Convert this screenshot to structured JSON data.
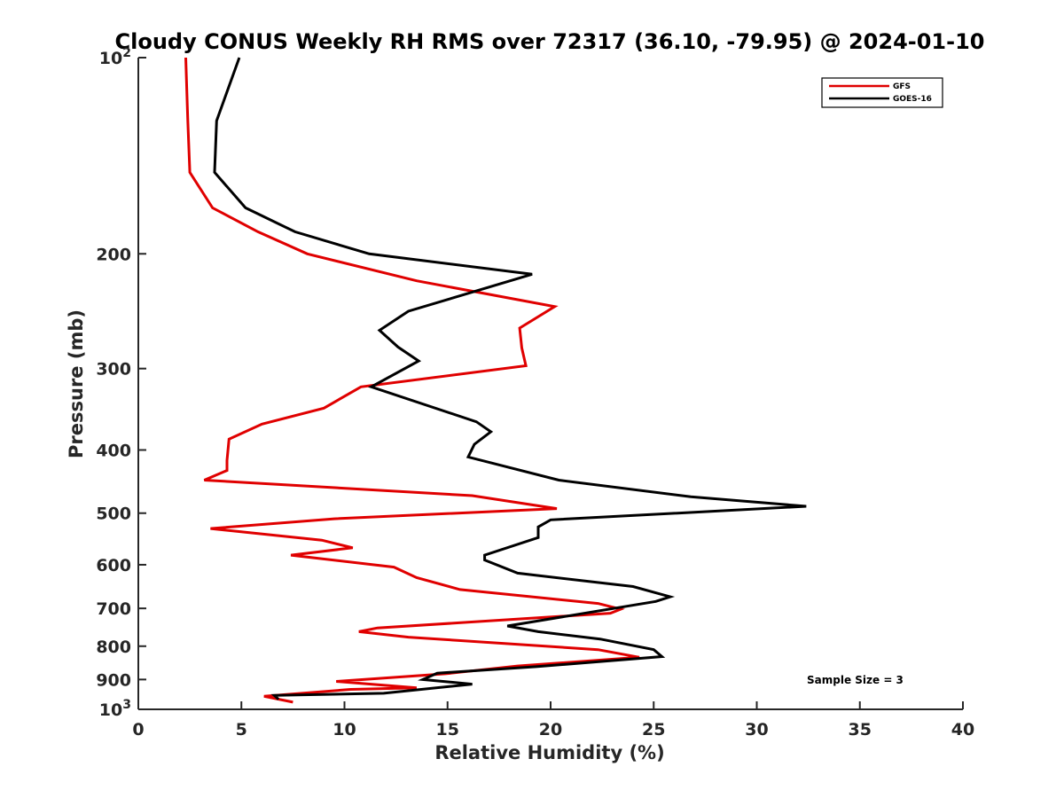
{
  "chart_data": {
    "type": "line",
    "title": "Cloudy CONUS Weekly RH RMS over 72317 (36.10, -79.95) @ 2024-01-10",
    "xlabel": "Relative Humidity (%)",
    "ylabel": "Pressure (mb)",
    "xlim": [
      0,
      40
    ],
    "ylim": [
      100,
      1000
    ],
    "y_scale": "log",
    "y_reversed": true,
    "grid": false,
    "legend_position": "top-right",
    "annotation": "Sample Size = 3",
    "x_ticks": [
      "0",
      "5",
      "10",
      "15",
      "20",
      "25",
      "30",
      "35",
      "40"
    ],
    "y_ticks": [
      {
        "value": 100,
        "base": "10",
        "exp": "2"
      },
      {
        "value": 200,
        "label": "200"
      },
      {
        "value": 300,
        "label": "300"
      },
      {
        "value": 400,
        "label": "400"
      },
      {
        "value": 500,
        "label": "500"
      },
      {
        "value": 600,
        "label": "600"
      },
      {
        "value": 700,
        "label": "700"
      },
      {
        "value": 800,
        "label": "800"
      },
      {
        "value": 900,
        "label": "900"
      },
      {
        "value": 1000,
        "base": "10",
        "exp": "3"
      }
    ],
    "series": [
      {
        "name": "GFS",
        "color": "#e00000",
        "points": [
          [
            2.3,
            100
          ],
          [
            2.4,
            125
          ],
          [
            2.5,
            150
          ],
          [
            3.6,
            170
          ],
          [
            5.8,
            185
          ],
          [
            8.2,
            200
          ],
          [
            13.5,
            220
          ],
          [
            20.2,
            241
          ],
          [
            18.5,
            260
          ],
          [
            18.6,
            279
          ],
          [
            18.8,
            297
          ],
          [
            10.8,
            320
          ],
          [
            9.0,
            345
          ],
          [
            6.0,
            365
          ],
          [
            4.4,
            385
          ],
          [
            4.3,
            415
          ],
          [
            4.3,
            430
          ],
          [
            3.2,
            445
          ],
          [
            16.2,
            470
          ],
          [
            20.3,
            492
          ],
          [
            9.5,
            510
          ],
          [
            3.5,
            528
          ],
          [
            8.9,
            550
          ],
          [
            10.4,
            565
          ],
          [
            7.4,
            580
          ],
          [
            12.4,
            605
          ],
          [
            13.5,
            628
          ],
          [
            15.6,
            655
          ],
          [
            22.3,
            688
          ],
          [
            23.4,
            702
          ],
          [
            22.9,
            712
          ],
          [
            11.6,
            750
          ],
          [
            10.7,
            760
          ],
          [
            13.1,
            775
          ],
          [
            22.3,
            810
          ],
          [
            24.3,
            832
          ],
          [
            18.4,
            858
          ],
          [
            14.9,
            882
          ],
          [
            9.6,
            906
          ],
          [
            13.5,
            927
          ],
          [
            10.3,
            932
          ],
          [
            6.1,
            955
          ],
          [
            7.5,
            975
          ]
        ]
      },
      {
        "name": "GOES-16",
        "color": "#000000",
        "points": [
          [
            4.9,
            100
          ],
          [
            3.8,
            125
          ],
          [
            3.7,
            150
          ],
          [
            5.2,
            170
          ],
          [
            7.6,
            185
          ],
          [
            11.2,
            200
          ],
          [
            19.1,
            215
          ],
          [
            13.1,
            245
          ],
          [
            11.7,
            262
          ],
          [
            12.6,
            278
          ],
          [
            13.6,
            292
          ],
          [
            11.3,
            320
          ],
          [
            16.4,
            362
          ],
          [
            17.1,
            375
          ],
          [
            16.3,
            392
          ],
          [
            16.0,
            410
          ],
          [
            20.4,
            445
          ],
          [
            26.8,
            472
          ],
          [
            32.4,
            488
          ],
          [
            20.0,
            512
          ],
          [
            19.4,
            525
          ],
          [
            19.4,
            545
          ],
          [
            16.8,
            580
          ],
          [
            16.8,
            590
          ],
          [
            18.4,
            618
          ],
          [
            24.0,
            648
          ],
          [
            25.8,
            672
          ],
          [
            25.1,
            683
          ],
          [
            17.9,
            745
          ],
          [
            19.4,
            760
          ],
          [
            22.4,
            780
          ],
          [
            25.0,
            810
          ],
          [
            25.4,
            830
          ],
          [
            19.3,
            860
          ],
          [
            14.5,
            880
          ],
          [
            13.8,
            900
          ],
          [
            16.2,
            915
          ],
          [
            11.9,
            945
          ],
          [
            6.6,
            952
          ],
          [
            6.8,
            965
          ]
        ]
      }
    ]
  }
}
